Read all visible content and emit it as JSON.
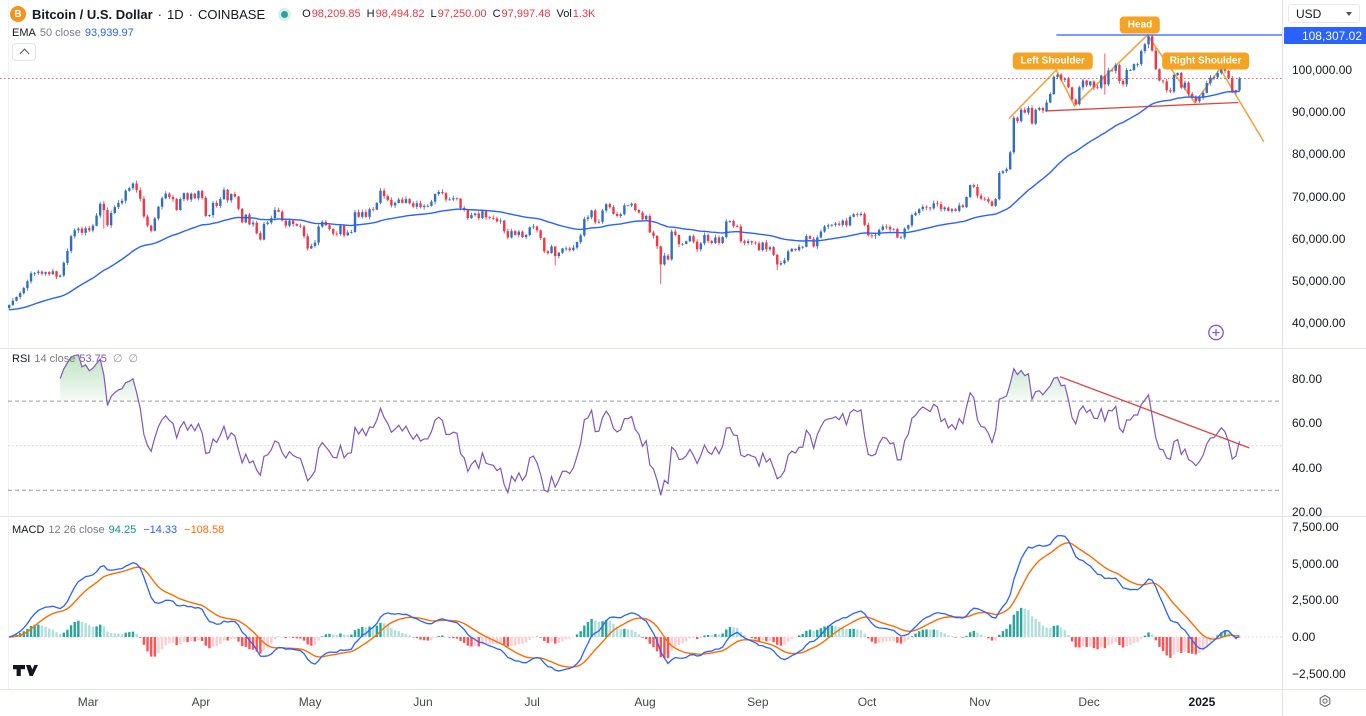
{
  "header": {
    "title": {
      "symbol": "Bitcoin / U.S. Dollar",
      "sep": "·",
      "interval": "1D",
      "exchange": "COINBASE",
      "icon_char": "B"
    },
    "ohlc": {
      "o_label": "O",
      "o": "98,209.85",
      "h_label": "H",
      "h": "98,494.82",
      "l_label": "L",
      "l": "97,250.00",
      "c_label": "C",
      "c": "97,997.48",
      "vol_label": "Vol",
      "vol": "1.3K"
    },
    "ema_row": {
      "name": "EMA",
      "params": "50 close",
      "value": "93,939.97"
    }
  },
  "panes": {
    "rsi": {
      "name": "RSI",
      "params": "14 close",
      "value": "53.75",
      "empty_icon": "∅"
    },
    "macd": {
      "name": "MACD",
      "params": "12 26 close",
      "values": [
        "94.25",
        "−14.33",
        "−108.58"
      ]
    }
  },
  "price_axis": {
    "currency": "USD",
    "active_label": "108,307.02"
  },
  "chart_data": {
    "type": "candlestick",
    "title": "Bitcoin / U.S. Dollar · 1D · COINBASE",
    "unit": "USD, values stored in thousands",
    "legend": [
      "EMA 50",
      "RSI 14",
      "MACD 12 26"
    ],
    "grid": false,
    "style": {
      "up": "#2e6ec5",
      "down": "#f23645",
      "ema": "#2962ff",
      "rsi": "#7e57c2",
      "rsi_fill": "#4caf50",
      "macd": "#2962ff",
      "signal": "#ff6d00",
      "hist": [
        "#26a69a",
        "#b2dfdb",
        "#ff5252",
        "#ffcdd2"
      ],
      "label_bg": "#f5a325",
      "level_dash": "#787b86",
      "level_dot": "#d1d4dc"
    },
    "price_pane": {
      "ylim_k": [
        34.1,
        116.6
      ],
      "ticks": [
        {
          "value": 100000,
          "label": "100,000.00"
        },
        {
          "value": 90000,
          "label": "90,000.00"
        },
        {
          "value": 80000,
          "label": "80,000.00"
        },
        {
          "value": 70000,
          "label": "70,000.00"
        },
        {
          "value": 60000,
          "label": "60,000.00"
        },
        {
          "value": 50000,
          "label": "50,000.00"
        },
        {
          "value": 40000,
          "label": "40,000.00"
        }
      ]
    },
    "rsi_pane": {
      "ylim": [
        18.4,
        93.0
      ],
      "levels": [
        70,
        30
      ],
      "mid_level": 50,
      "ticks": [
        {
          "value": 80,
          "label": "80.00"
        },
        {
          "value": 60,
          "label": "60.00"
        },
        {
          "value": 40,
          "label": "40.00"
        },
        {
          "value": 20,
          "label": "20.00"
        }
      ]
    },
    "macd_pane": {
      "ylim_k": [
        -3.542,
        8.174
      ],
      "ticks": [
        {
          "value": 7500,
          "label": "7,500.00"
        },
        {
          "value": 5000,
          "label": "5,000.00"
        },
        {
          "value": 2500,
          "label": "2,500.00"
        },
        {
          "value": 0,
          "label": "0.00"
        },
        {
          "value": -2500,
          "label": "−2,500.00"
        }
      ]
    },
    "x_axis": {
      "labels": [
        {
          "text": "Mar",
          "idx": 22
        },
        {
          "text": "Apr",
          "idx": 53
        },
        {
          "text": "May",
          "idx": 83
        },
        {
          "text": "Jun",
          "idx": 114
        },
        {
          "text": "Jul",
          "idx": 144
        },
        {
          "text": "Aug",
          "idx": 175
        },
        {
          "text": "Sep",
          "idx": 206
        },
        {
          "text": "Oct",
          "idx": 236
        },
        {
          "text": "Nov",
          "idx": 267
        },
        {
          "text": "Dec",
          "idx": 297
        },
        {
          "text": "2025",
          "idx": 328,
          "bold": true
        }
      ]
    },
    "candles": {
      "open_seed_k": 43.6,
      "close_k": [
        44.3,
        45.3,
        46.2,
        47.1,
        48.3,
        49.9,
        51.8,
        51.9,
        52.2,
        51.7,
        52.1,
        51.6,
        52.3,
        51.0,
        51.3,
        54.3,
        57.1,
        60.6,
        62.0,
        62.4,
        61.4,
        62.5,
        62.0,
        63.1,
        65.5,
        68.3,
        66.8,
        63.2,
        66.1,
        67.5,
        68.5,
        69.0,
        71.4,
        72.0,
        73.1,
        71.5,
        69.5,
        65.3,
        63.1,
        61.9,
        64.8,
        67.6,
        69.6,
        70.7,
        69.9,
        69.4,
        66.8,
        69.4,
        70.8,
        69.3,
        70.7,
        69.6,
        71.3,
        69.7,
        65.4,
        65.6,
        68.5,
        67.8,
        69.4,
        71.6,
        69.1,
        70.6,
        70.0,
        67.1,
        63.9,
        65.7,
        63.4,
        63.8,
        61.3,
        59.8,
        63.5,
        63.8,
        64.9,
        66.8,
        66.4,
        64.3,
        63.1,
        64.3,
        63.5,
        63.1,
        62.9,
        60.6,
        57.7,
        58.3,
        59.1,
        62.9,
        64.0,
        63.2,
        62.3,
        61.2,
        61.1,
        63.1,
        60.8,
        61.5,
        61.6,
        66.3,
        65.2,
        66.3,
        65.2,
        67.0,
        66.9,
        68.5,
        71.4,
        70.1,
        69.2,
        67.9,
        68.5,
        69.3,
        68.5,
        69.4,
        68.4,
        67.6,
        68.4,
        67.5,
        67.8,
        67.8,
        68.8,
        70.6,
        71.1,
        70.8,
        69.3,
        69.3,
        69.6,
        69.5,
        67.3,
        66.8,
        64.9,
        65.6,
        66.0,
        64.9,
        66.5,
        65.1,
        64.9,
        64.8,
        64.1,
        64.3,
        61.8,
        60.3,
        61.8,
        60.9,
        61.7,
        60.4,
        60.9,
        62.7,
        62.9,
        62.0,
        60.2,
        57.0,
        56.6,
        58.2,
        55.9,
        56.7,
        57.7,
        57.7,
        57.3,
        57.9,
        59.2,
        60.8,
        64.7,
        65.1,
        66.7,
        63.9,
        64.0,
        66.7,
        68.2,
        67.5,
        65.9,
        65.4,
        65.8,
        67.9,
        67.9,
        68.3,
        66.8,
        66.2,
        64.6,
        65.4,
        61.5,
        60.7,
        58.2,
        53.9,
        56.0,
        55.1,
        61.7,
        60.9,
        58.7,
        58.8,
        59.4,
        60.6,
        59.3,
        57.5,
        58.9,
        60.9,
        59.5,
        59.0,
        60.3,
        59.0,
        60.4,
        64.1,
        64.2,
        63.0,
        62.9,
        59.4,
        59.0,
        59.4,
        59.1,
        58.9,
        57.3,
        59.1,
        57.5,
        58.0,
        56.2,
        53.9,
        54.2,
        54.9,
        57.0,
        57.6,
        57.3,
        58.1,
        58.1,
        60.6,
        60.0,
        58.2,
        60.3,
        61.7,
        62.9,
        63.2,
        63.3,
        63.6,
        63.3,
        64.3,
        63.2,
        65.2,
        65.8,
        65.6,
        65.9,
        63.3,
        60.8,
        60.6,
        60.8,
        62.1,
        62.9,
        62.8,
        62.2,
        62.3,
        60.3,
        60.3,
        62.4,
        63.2,
        65.6,
        66.1,
        67.0,
        67.6,
        67.4,
        67.2,
        68.4,
        68.2,
        67.0,
        67.4,
        66.6,
        67.0,
        66.6,
        67.9,
        67.5,
        69.9,
        72.7,
        72.3,
        70.2,
        69.5,
        69.4,
        68.8,
        67.8,
        69.4,
        75.6,
        76.0,
        76.5,
        80.5,
        88.7,
        87.9,
        90.6,
        89.9,
        91.0,
        87.3,
        90.6,
        91.0,
        90.4,
        92.3,
        94.3,
        98.4,
        98.9,
        97.7,
        98.0,
        95.9,
        93.0,
        91.9,
        95.9,
        97.5,
        96.4,
        97.3,
        95.9,
        95.8,
        98.7,
        96.6,
        99.9,
        99.8,
        101.2,
        97.4,
        96.6,
        100.0,
        100.0,
        101.4,
        101.4,
        104.5,
        106.1,
        108.0,
        104.6,
        100.2,
        97.5,
        97.3,
        95.2,
        94.9,
        98.8,
        99.3,
        95.8,
        97.0,
        94.3,
        93.7,
        92.6,
        93.4,
        94.6,
        96.9,
        98.2,
        98.3,
        99.3,
        100.4,
        99.8,
        98.1,
        94.7,
        95.2,
        98.0
      ],
      "wick_overrides_k": {
        "26": [
          69.0,
          62.4
        ],
        "35": [
          73.8,
          70.9
        ],
        "150": [
          57.6,
          53.7
        ],
        "179": [
          58.4,
          49.2
        ],
        "211": [
          56.4,
          52.6
        ],
        "301": [
          103.9,
          94.2
        ],
        "313": [
          108.4,
          105.2
        ],
        "333": [
          100.9,
          98.9
        ]
      }
    },
    "indicators": {
      "ema_length": 50,
      "rsi_length": 14,
      "macd": [
        12,
        26,
        9
      ]
    },
    "annotations": {
      "resistance_line": {
        "price_k": 108.307,
        "from_idx": 288,
        "label": "108,307.02",
        "color": "#2962ff"
      },
      "current_price_line": {
        "price_k": 97.997,
        "color": "#f23645"
      },
      "neckline": {
        "from": [
          285,
          90.3
        ],
        "to": [
          338,
          92.3
        ],
        "color": "#e0433e"
      },
      "pattern_path": {
        "points": [
          [
            275,
            88.5
          ],
          [
            288,
            100.0
          ],
          [
            293,
            91.5
          ],
          [
            313,
            108.3
          ],
          [
            326,
            92.3
          ],
          [
            333,
            100.3
          ],
          [
            345,
            83.0
          ]
        ],
        "color": "#f0a03c"
      },
      "pattern_labels": [
        {
          "text": "Left Shoulder",
          "idx": 287,
          "price_k": 102.2
        },
        {
          "text": "Head",
          "idx": 311,
          "price_k": 110.6
        },
        {
          "text": "Right Shoulder",
          "idx": 329,
          "price_k": 102.2
        }
      ],
      "rsi_trendline": {
        "from": [
          289,
          81
        ],
        "to": [
          341,
          49
        ],
        "color": "#e0433e"
      },
      "plus_marker": {
        "idx": 332,
        "price_k": 37.2,
        "color": "#7e57c2"
      }
    }
  }
}
